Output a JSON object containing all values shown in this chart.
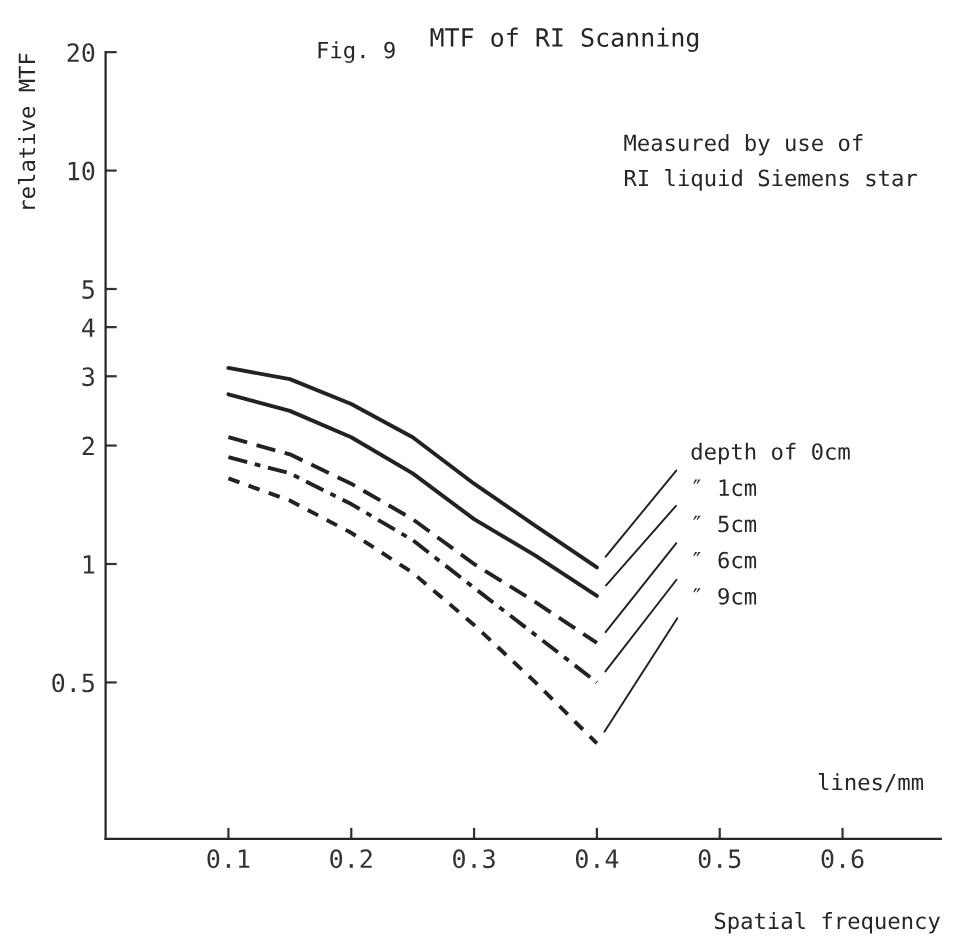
{
  "chart_data": {
    "type": "line",
    "title": "MTF of RI Scanning",
    "xlabel": "Spatial frequency",
    "ylabel": "relative MTF",
    "annotations": [
      "Fig. 9",
      "Measured by use of\nRI liquid Siemens star",
      "lines/mm"
    ],
    "x": [
      0.1,
      0.15,
      0.2,
      0.25,
      0.3,
      0.35,
      0.4
    ],
    "series": [
      {
        "name": "depth of 0cm",
        "color": "#222222",
        "line_style": "solid",
        "values": [
          3.15,
          2.95,
          2.55,
          2.1,
          1.6,
          1.25,
          0.98
        ]
      },
      {
        "name": "″ 1cm",
        "color": "#222222",
        "line_style": "solid",
        "values": [
          2.7,
          2.45,
          2.1,
          1.7,
          1.3,
          1.05,
          0.83
        ]
      },
      {
        "name": "″ 5cm",
        "color": "#222222",
        "line_style": "dashed",
        "values": [
          2.1,
          1.9,
          1.6,
          1.3,
          1.0,
          0.8,
          0.63
        ]
      },
      {
        "name": "″ 6cm",
        "color": "#222222",
        "line_style": "dashdot",
        "values": [
          1.87,
          1.7,
          1.42,
          1.15,
          0.87,
          0.66,
          0.5
        ]
      },
      {
        "name": "″ 9cm",
        "color": "#222222",
        "line_style": "dotted",
        "values": [
          1.65,
          1.45,
          1.2,
          0.95,
          0.7,
          0.5,
          0.35
        ]
      }
    ],
    "log": "y",
    "xlim": [
      0,
      0.68
    ],
    "ylim": [
      0.2,
      20
    ],
    "xticks": [
      0.1,
      0.2,
      0.3,
      0.4,
      0.5,
      0.6
    ],
    "yticks": [
      0.5,
      1,
      2,
      3,
      4,
      5,
      10,
      20
    ],
    "grid": false,
    "legend": false,
    "marker": "none"
  }
}
